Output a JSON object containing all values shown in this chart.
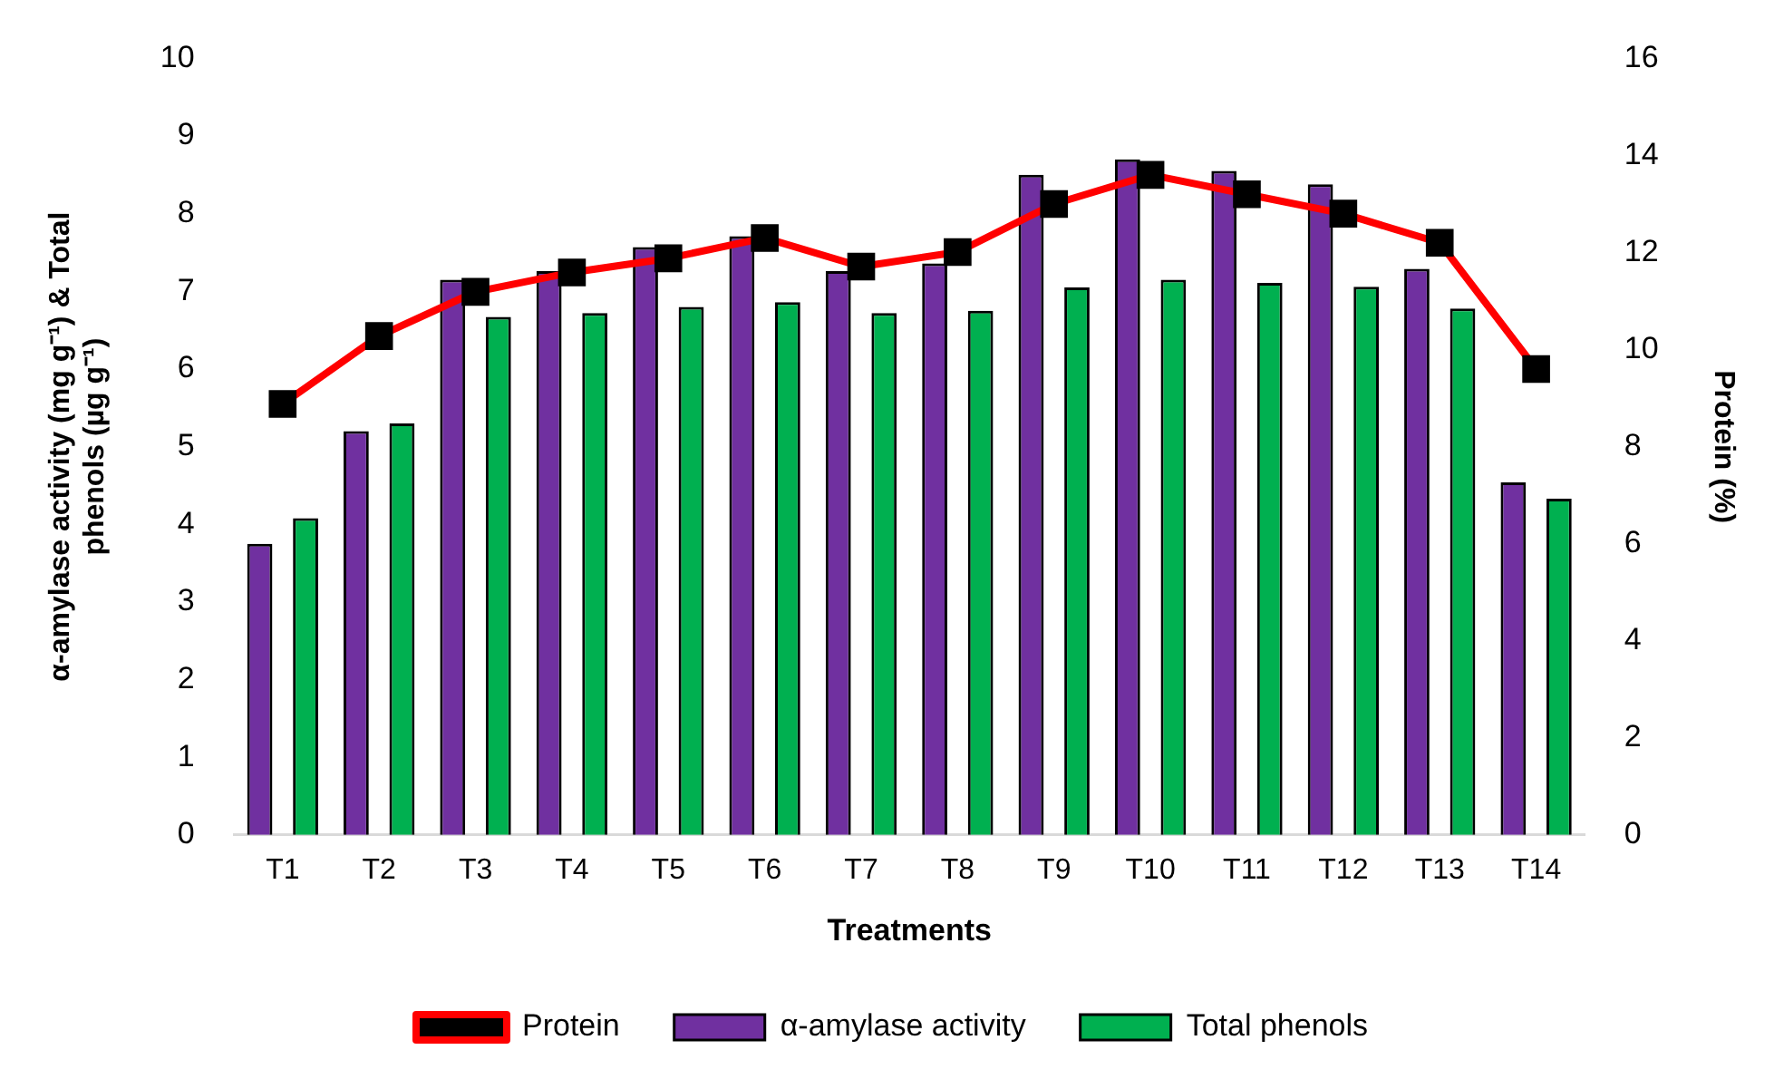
{
  "chart_data": {
    "type": "bar",
    "xlabel": "Treatments",
    "ylabel": "α-amylase activity (mg g⁻¹) & Total phenols (µg g⁻¹)",
    "y2label": "Protein (%)",
    "categories": [
      "T1",
      "T2",
      "T3",
      "T4",
      "T5",
      "T6",
      "T7",
      "T8",
      "T9",
      "T10",
      "T11",
      "T12",
      "T13",
      "T14"
    ],
    "series": [
      {
        "name": "α-amylase activity",
        "color": "#7030a0",
        "values": [
          3.75,
          5.2,
          7.15,
          7.26,
          7.57,
          7.71,
          7.26,
          7.36,
          8.5,
          8.7,
          8.55,
          8.38,
          7.29,
          4.54
        ]
      },
      {
        "name": "Total phenols",
        "color": "#00b050",
        "values": [
          4.08,
          5.3,
          6.67,
          6.72,
          6.8,
          6.86,
          6.72,
          6.75,
          7.05,
          7.15,
          7.11,
          7.06,
          6.78,
          4.33
        ]
      },
      {
        "name": "Protein",
        "type": "line",
        "axis": "y2",
        "color": "#ff0000",
        "marker": "square",
        "values": [
          8.88,
          10.28,
          11.19,
          11.59,
          11.88,
          12.3,
          11.71,
          12.01,
          13.0,
          13.6,
          13.2,
          12.8,
          12.2,
          9.6
        ]
      }
    ],
    "ylim": [
      0,
      10
    ],
    "yticks": [
      0,
      1,
      2,
      3,
      4,
      5,
      6,
      7,
      8,
      9,
      10
    ],
    "y2lim": [
      0,
      16
    ],
    "y2ticks": [
      0,
      2,
      4,
      6,
      8,
      10,
      12,
      14,
      16
    ],
    "grid": false,
    "legend": "bottom"
  }
}
